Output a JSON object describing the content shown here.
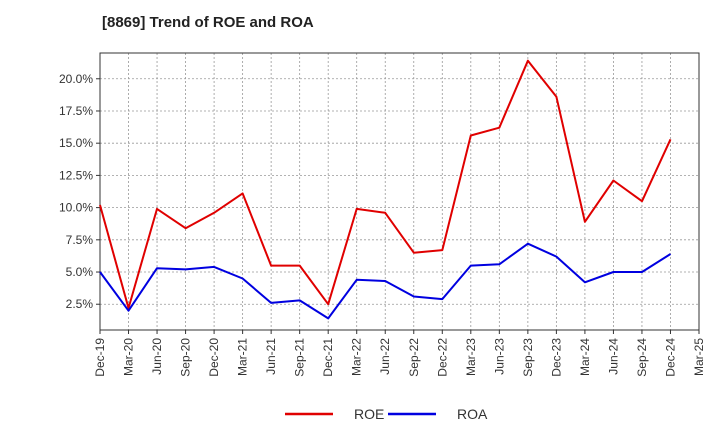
{
  "title": "[8869]  Trend of ROE and ROA",
  "colors": {
    "roe": "#e00000",
    "roa": "#0000e0",
    "grid": "#999999",
    "axis": "#333333",
    "plot_bg": "#ffffff"
  },
  "chart_data": {
    "type": "line",
    "title": "[8869]  Trend of ROE and ROA",
    "xlabel": "",
    "ylabel": "",
    "x": [
      "Dec-19",
      "Mar-20",
      "Jun-20",
      "Sep-20",
      "Dec-20",
      "Mar-21",
      "Jun-21",
      "Sep-21",
      "Dec-21",
      "Mar-22",
      "Jun-22",
      "Sep-22",
      "Dec-22",
      "Mar-23",
      "Jun-23",
      "Sep-23",
      "Dec-23",
      "Mar-24",
      "Jun-24",
      "Sep-24",
      "Dec-24",
      "Mar-25"
    ],
    "y_ticks": [
      "2.5%",
      "5.0%",
      "7.5%",
      "10.0%",
      "12.5%",
      "15.0%",
      "17.5%",
      "20.0%"
    ],
    "y_tick_values": [
      2.5,
      5.0,
      7.5,
      10.0,
      12.5,
      15.0,
      17.5,
      20.0
    ],
    "ylim": [
      0.5,
      22.0
    ],
    "grid": true,
    "legend_position": "bottom-center",
    "series": [
      {
        "name": "ROE",
        "color": "#e00000",
        "values": [
          10.2,
          2.2,
          9.9,
          8.4,
          9.6,
          11.1,
          5.5,
          5.5,
          2.5,
          9.9,
          9.6,
          6.5,
          6.7,
          15.6,
          16.2,
          21.4,
          18.6,
          8.9,
          12.1,
          10.5,
          15.3,
          null
        ]
      },
      {
        "name": "ROA",
        "color": "#0000e0",
        "values": [
          5.0,
          2.0,
          5.3,
          5.2,
          5.4,
          4.5,
          2.6,
          2.8,
          1.4,
          4.4,
          4.3,
          3.1,
          2.9,
          5.5,
          5.6,
          7.2,
          6.2,
          4.2,
          5.0,
          5.0,
          6.4,
          null
        ]
      }
    ]
  }
}
